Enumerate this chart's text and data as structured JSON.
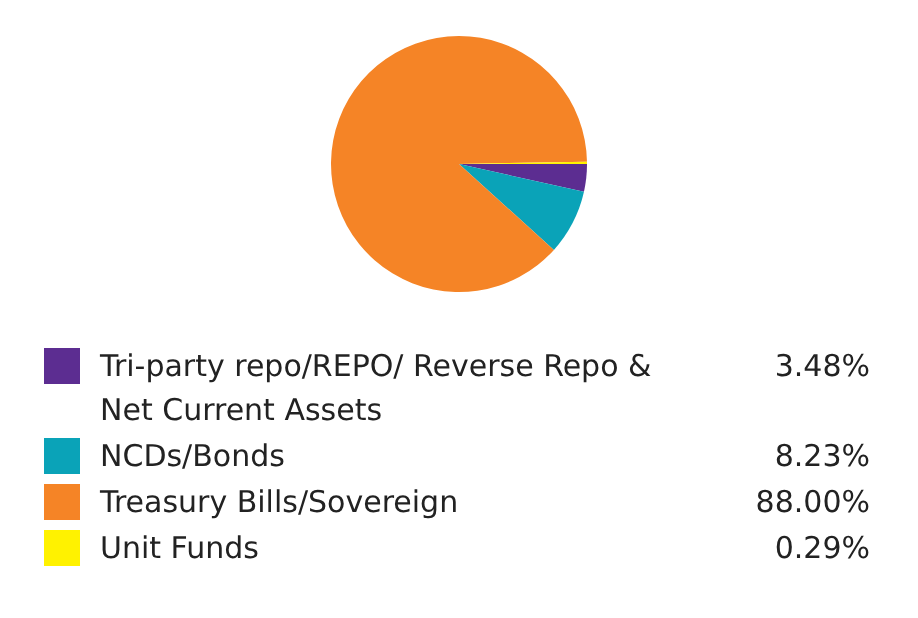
{
  "chart_data": {
    "type": "pie",
    "categories": [
      "Tri-party repo/REPO/ Reverse Repo & Net Current Assets",
      "NCDs/Bonds",
      "Treasury Bills/Sovereign",
      "Unit Funds"
    ],
    "values": [
      3.48,
      8.23,
      88.0,
      0.29
    ],
    "colors": [
      "#5c2d91",
      "#0aa3b8",
      "#f58426",
      "#fff200"
    ],
    "value_labels": [
      "3.48%",
      "8.23%",
      "88.00%",
      "0.29%"
    ],
    "legend": "bottom"
  }
}
